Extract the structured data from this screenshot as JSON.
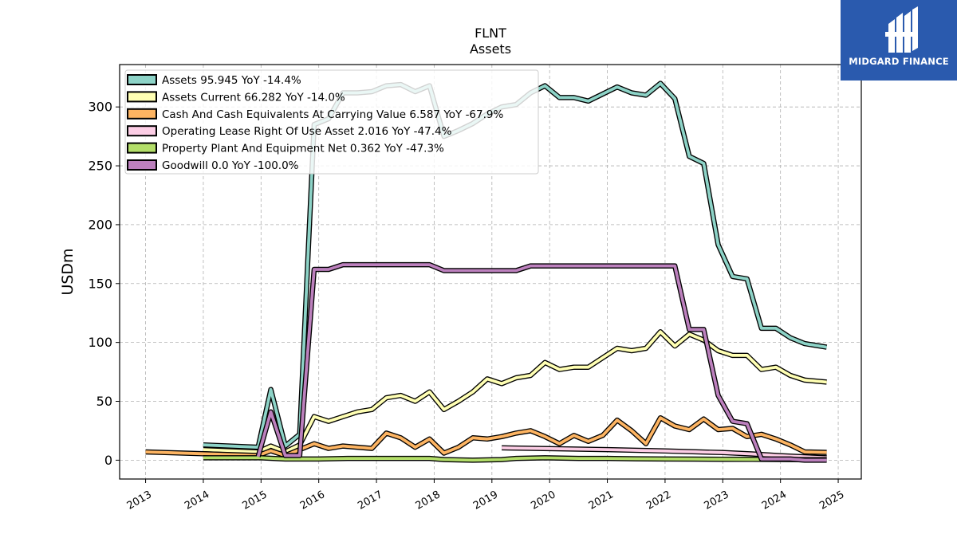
{
  "brand": {
    "name": "MIDGARD FINANCE",
    "bg_color": "#2a5aae",
    "icon": "midgard-logo-icon"
  },
  "chart_data": {
    "type": "line",
    "title": "FLNT",
    "subtitle": "Assets",
    "ylabel": "USDm",
    "xlabel": "",
    "xlim": [
      2012.55,
      2025.4
    ],
    "ylim": [
      -16,
      336
    ],
    "yticks": [
      0,
      50,
      100,
      150,
      200,
      250,
      300
    ],
    "xticks": [
      2013,
      2014,
      2015,
      2016,
      2017,
      2018,
      2019,
      2020,
      2021,
      2022,
      2023,
      2024,
      2025
    ],
    "grid": true,
    "legend_position": "top-left",
    "series": [
      {
        "name": "Assets  95.945 YoY -14.4%",
        "color": "#8dd3c7",
        "x": [
          2014.0,
          2014.95,
          2015.17,
          2015.42,
          2015.67,
          2015.92,
          2016.17,
          2016.42,
          2016.67,
          2016.92,
          2017.17,
          2017.42,
          2017.67,
          2017.92,
          2018.17,
          2018.42,
          2018.67,
          2018.92,
          2019.17,
          2019.42,
          2019.67,
          2019.92,
          2020.17,
          2020.42,
          2020.67,
          2020.92,
          2021.17,
          2021.42,
          2021.67,
          2021.92,
          2022.17,
          2022.42,
          2022.67,
          2022.92,
          2023.17,
          2023.42,
          2023.67,
          2023.92,
          2024.17,
          2024.42,
          2024.8
        ],
        "y": [
          13,
          11,
          60,
          12,
          22,
          285,
          290,
          312,
          312,
          313,
          318,
          319,
          313,
          318,
          275,
          280,
          286,
          294,
          300,
          302,
          312,
          318,
          308,
          308,
          305,
          311,
          317,
          312,
          310,
          320,
          307,
          258,
          252,
          183,
          156,
          154,
          112,
          112,
          104,
          99,
          95.945
        ]
      },
      {
        "name": "Assets Current  66.282 YoY -14.0%",
        "color": "#ffffb3",
        "x": [
          2014.0,
          2014.95,
          2015.17,
          2015.42,
          2015.67,
          2015.92,
          2016.17,
          2016.42,
          2016.67,
          2016.92,
          2017.17,
          2017.42,
          2017.67,
          2017.92,
          2018.17,
          2018.42,
          2018.67,
          2018.92,
          2019.17,
          2019.42,
          2019.67,
          2019.92,
          2020.17,
          2020.42,
          2020.67,
          2020.92,
          2021.17,
          2021.42,
          2021.67,
          2021.92,
          2022.17,
          2022.42,
          2022.67,
          2022.92,
          2023.17,
          2023.42,
          2023.67,
          2023.92,
          2024.17,
          2024.42,
          2024.8
        ],
        "y": [
          9,
          7,
          12,
          7,
          13,
          37,
          33,
          37,
          41,
          43,
          53,
          55,
          50,
          58,
          43,
          50,
          58,
          69,
          65,
          70,
          72,
          83,
          77,
          79,
          79,
          87,
          95,
          93,
          95,
          109,
          97,
          107,
          102,
          93,
          89,
          89,
          77,
          79,
          72,
          68,
          66.282
        ]
      },
      {
        "name": "Cash And Cash Equivalents At Carrying Value  6.587 YoY -67.9%",
        "color": "#fdb462",
        "x": [
          2013.0,
          2014.95,
          2015.17,
          2015.42,
          2015.67,
          2015.92,
          2016.17,
          2016.42,
          2016.67,
          2016.92,
          2017.17,
          2017.42,
          2017.67,
          2017.92,
          2018.17,
          2018.42,
          2018.67,
          2018.92,
          2019.17,
          2019.42,
          2019.67,
          2019.92,
          2020.17,
          2020.42,
          2020.67,
          2020.92,
          2021.17,
          2021.42,
          2021.67,
          2021.92,
          2022.17,
          2022.42,
          2022.67,
          2022.92,
          2023.17,
          2023.42,
          2023.67,
          2023.92,
          2024.17,
          2024.42,
          2024.8
        ],
        "y": [
          7,
          4,
          8,
          4,
          9,
          14,
          10,
          12,
          11,
          10,
          23,
          19,
          11,
          18,
          6,
          11,
          19,
          18,
          20,
          23,
          25,
          20,
          14,
          21,
          16,
          21,
          34,
          25,
          14,
          36,
          29,
          26,
          35,
          26,
          27,
          20,
          22,
          18,
          13,
          7,
          6.587
        ]
      },
      {
        "name": "Operating Lease Right Of Use Asset  2.016 YoY -47.4%",
        "color": "#fccde5",
        "x": [
          2019.17,
          2020.0,
          2021.0,
          2022.0,
          2023.0,
          2023.5,
          2024.0,
          2024.8
        ],
        "y": [
          10.5,
          9.8,
          9.0,
          7.8,
          6.5,
          5.3,
          3.8,
          2.016
        ]
      },
      {
        "name": "Property Plant And Equipment Net  0.362 YoY -47.3%",
        "color": "#b3de69",
        "x": [
          2014.0,
          2015.0,
          2015.42,
          2016.0,
          2016.5,
          2017.0,
          2017.5,
          2017.92,
          2018.17,
          2018.67,
          2019.17,
          2019.42,
          2019.92,
          2020.5,
          2021.0,
          2021.5,
          2022.0,
          2022.5,
          2023.0,
          2023.5,
          2024.0,
          2024.8
        ],
        "y": [
          2,
          2,
          1,
          1,
          1.5,
          1.5,
          1.5,
          1.5,
          0.5,
          0,
          0.5,
          1.5,
          2,
          1.5,
          1.5,
          1.2,
          1,
          0.9,
          0.8,
          0.7,
          0.6,
          0.362
        ]
      },
      {
        "name": "Goodwill  0.0 YoY -100.0%",
        "color": "#bc80bd",
        "x": [
          2014.95,
          2015.17,
          2015.42,
          2015.67,
          2015.92,
          2016.17,
          2016.42,
          2016.67,
          2016.92,
          2017.17,
          2017.42,
          2017.67,
          2017.92,
          2018.17,
          2018.42,
          2018.67,
          2018.92,
          2019.17,
          2019.42,
          2019.67,
          2019.92,
          2020.17,
          2020.42,
          2020.67,
          2020.92,
          2021.17,
          2021.42,
          2021.67,
          2021.92,
          2022.17,
          2022.42,
          2022.67,
          2022.92,
          2023.17,
          2023.42,
          2023.67,
          2023.92,
          2024.17,
          2024.42,
          2024.8
        ],
        "y": [
          3,
          41,
          4,
          4,
          162,
          162,
          166,
          166,
          166,
          166,
          166,
          166,
          166,
          161,
          161,
          161,
          161,
          161,
          161,
          165,
          165,
          165,
          165,
          165,
          165,
          165,
          165,
          165,
          165,
          165,
          111,
          111,
          55,
          33,
          31,
          1,
          1,
          1,
          0,
          0.0
        ]
      }
    ]
  }
}
